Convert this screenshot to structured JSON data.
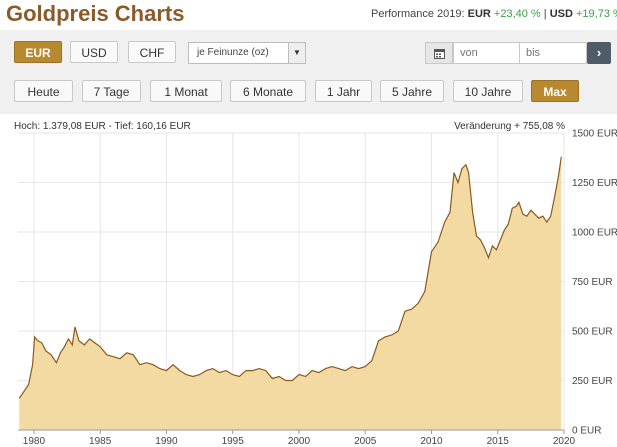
{
  "header": {
    "title": "Goldpreis Charts",
    "performance_prefix": "Performance 2019:",
    "perf_eur_label": "EUR",
    "perf_eur_value": "+23,40 %",
    "separator": "|",
    "perf_usd_label": "USD",
    "perf_usd_value": "+19,73 %"
  },
  "currency_buttons": [
    {
      "label": "EUR",
      "active": true
    },
    {
      "label": "USD",
      "active": false
    },
    {
      "label": "CHF",
      "active": false
    }
  ],
  "unit_select": {
    "value": "je Feinunze (oz)"
  },
  "date_range": {
    "from_placeholder": "von",
    "to_placeholder": "bis",
    "go_icon": "chevron-right-icon",
    "calendar_icon": "calendar-icon"
  },
  "period_buttons": [
    {
      "label": "Heute",
      "active": false
    },
    {
      "label": "7 Tage",
      "active": false
    },
    {
      "label": "1 Monat",
      "active": false
    },
    {
      "label": "6 Monate",
      "active": false
    },
    {
      "label": "1 Jahr",
      "active": false
    },
    {
      "label": "5 Jahre",
      "active": false
    },
    {
      "label": "10 Jahre",
      "active": false
    },
    {
      "label": "Max",
      "active": true
    }
  ],
  "stats": {
    "high_low": "Hoch: 1.379,08 EUR - Tief: 160,16 EUR",
    "change": "Veränderung + 755,08 %"
  },
  "colors": {
    "line": "#8a5a1e",
    "fill": "#f3d9a2",
    "active_button": "#b8892f"
  },
  "chart_data": {
    "type": "area",
    "title": "",
    "xlabel": "",
    "ylabel": "",
    "xlim": [
      1978.8,
      2020.0
    ],
    "ylim": [
      0,
      1500
    ],
    "x_ticks": [
      "1980",
      "1985",
      "1990",
      "1995",
      "2000",
      "2005",
      "2010",
      "2015",
      "2020"
    ],
    "y_ticks": [
      "1500 EUR",
      "1250 EUR",
      "1000 EUR",
      "750 EUR",
      "500 EUR",
      "250 EUR",
      "0 EUR"
    ],
    "grid": true,
    "series": [
      {
        "x": [
          1978.9,
          1979.2,
          1979.6,
          1979.9,
          1980.05,
          1980.3,
          1980.6,
          1980.9,
          1981.3,
          1981.7,
          1982.0,
          1982.3,
          1982.6,
          1982.9,
          1983.1,
          1983.4,
          1983.8,
          1984.2,
          1984.6,
          1985.0,
          1985.5,
          1986.0,
          1986.5,
          1987.0,
          1987.5,
          1988.0,
          1988.5,
          1989.0,
          1989.5,
          1990.0,
          1990.5,
          1991.0,
          1991.5,
          1992.0,
          1992.5,
          1993.0,
          1993.5,
          1994.0,
          1994.5,
          1995.0,
          1995.5,
          1996.0,
          1996.5,
          1997.0,
          1997.5,
          1998.0,
          1998.5,
          1999.0,
          1999.5,
          2000.0,
          2000.5,
          2001.0,
          2001.5,
          2002.0,
          2002.5,
          2003.0,
          2003.5,
          2004.0,
          2004.5,
          2005.0,
          2005.5,
          2006.0,
          2006.5,
          2007.0,
          2007.5,
          2008.0,
          2008.5,
          2009.0,
          2009.5,
          2010.0,
          2010.5,
          2011.0,
          2011.4,
          2011.7,
          2012.0,
          2012.3,
          2012.6,
          2012.8,
          2013.1,
          2013.4,
          2013.7,
          2014.0,
          2014.3,
          2014.6,
          2014.9,
          2015.2,
          2015.5,
          2015.8,
          2016.1,
          2016.4,
          2016.6,
          2016.9,
          2017.2,
          2017.5,
          2017.8,
          2018.1,
          2018.4,
          2018.7,
          2019.0,
          2019.3,
          2019.6,
          2019.8
        ],
        "values": [
          160,
          190,
          230,
          330,
          470,
          450,
          440,
          400,
          380,
          340,
          390,
          420,
          460,
          430,
          520,
          450,
          430,
          460,
          440,
          420,
          380,
          370,
          360,
          390,
          380,
          330,
          340,
          330,
          310,
          300,
          330,
          300,
          280,
          270,
          280,
          300,
          310,
          290,
          300,
          280,
          270,
          300,
          300,
          310,
          300,
          260,
          270,
          250,
          250,
          280,
          270,
          300,
          290,
          310,
          320,
          310,
          300,
          320,
          310,
          320,
          350,
          450,
          470,
          480,
          500,
          600,
          610,
          640,
          700,
          900,
          950,
          1050,
          1100,
          1300,
          1250,
          1320,
          1340,
          1300,
          1100,
          980,
          960,
          920,
          870,
          930,
          910,
          960,
          1010,
          1040,
          1120,
          1130,
          1150,
          1090,
          1080,
          1110,
          1090,
          1070,
          1080,
          1050,
          1080,
          1180,
          1290,
          1380
        ]
      }
    ]
  }
}
